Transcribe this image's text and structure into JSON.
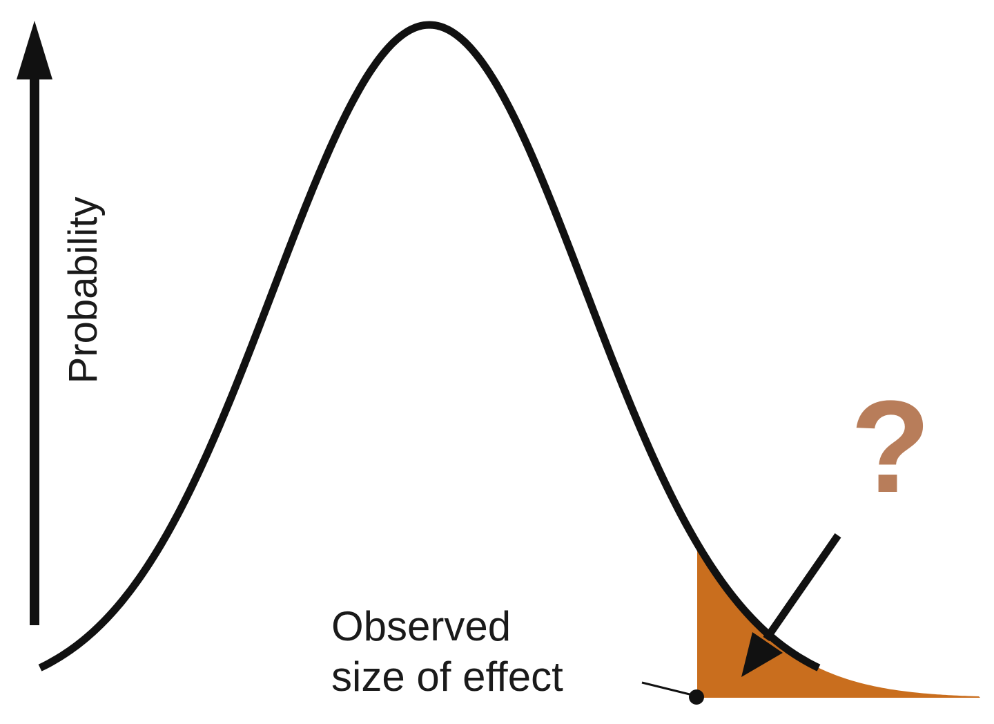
{
  "diagram": {
    "y_axis_label": "Probability",
    "annotation_line1": "Observed",
    "annotation_line2": "size of effect",
    "question_mark": "?",
    "colors": {
      "curve": "#111111",
      "tail_fill": "#c96e1e",
      "question_mark": "#b87d5a",
      "axis": "#111111"
    }
  }
}
